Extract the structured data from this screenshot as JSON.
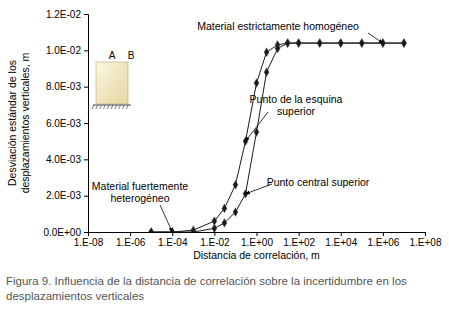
{
  "chart_data": {
    "type": "line",
    "title": "Figura 9. Influencia de la distancia de correlación sobre la incertidumbre en los desplazamientos verticales",
    "x_label": "Distancia de correlación, m",
    "y_label": "Desviación estándar de los desplazamientos verticales, m",
    "log": "x",
    "grid": false,
    "x": [
      1e-05,
      0.0001,
      0.001,
      0.01,
      0.03,
      0.1,
      0.3,
      1,
      3,
      10,
      30,
      100,
      1000,
      10000,
      100000,
      1000000,
      10000000
    ],
    "series": [
      {
        "name": "Punto de la esquina superior",
        "color": "#1a1a1a",
        "marker": "diamond",
        "line_style": "solid",
        "values": [
          0,
          0,
          0.0001,
          0.0006,
          0.0013,
          0.0026,
          0.005,
          0.0082,
          0.0099,
          0.0103,
          0.0104,
          0.0104,
          0.0104,
          0.0104,
          0.0104,
          0.0104,
          0.0104
        ]
      },
      {
        "name": "Punto central superior",
        "color": "#1a1a1a",
        "marker": "diamond",
        "line_style": "solid",
        "values": [
          0,
          0,
          0,
          0.0002,
          0.0005,
          0.0011,
          0.0021,
          0.0055,
          0.0088,
          0.0101,
          0.0104,
          0.0104,
          0.0104,
          0.0104,
          0.0104,
          0.0104,
          0.0104
        ]
      }
    ],
    "xlim": [
      1e-08,
      100000000.0
    ],
    "xticks": [
      {
        "value": 1e-08,
        "label": "1.E-08"
      },
      {
        "value": 1e-06,
        "label": "1.E-06"
      },
      {
        "value": 0.0001,
        "label": "1.E-04"
      },
      {
        "value": 0.01,
        "label": "1.E-02"
      },
      {
        "value": 1,
        "label": "1.E+00"
      },
      {
        "value": 100,
        "label": "1.E+02"
      },
      {
        "value": 10000,
        "label": "1.E+04"
      },
      {
        "value": 1000000,
        "label": "1.E+06"
      },
      {
        "value": 100000000,
        "label": "1.E+08"
      }
    ],
    "ylim": [
      0,
      0.012
    ],
    "yticks": [
      {
        "value": 0,
        "label": "0.0E+00"
      },
      {
        "value": 0.002,
        "label": "2.0E-03"
      },
      {
        "value": 0.004,
        "label": "4.0E-03"
      },
      {
        "value": 0.006,
        "label": "6.0E-03"
      },
      {
        "value": 0.008,
        "label": "8.0E-03"
      },
      {
        "value": 0.01,
        "label": "1.0E-02"
      },
      {
        "value": 0.012,
        "label": "1.2E-02"
      }
    ],
    "annotations": [
      "Material estrictamente homogéneo",
      "Punto de la esquina superior",
      "Punto central superior",
      "Material fuertemente heterogéneo"
    ],
    "inset_labels": [
      "A",
      "B"
    ]
  }
}
